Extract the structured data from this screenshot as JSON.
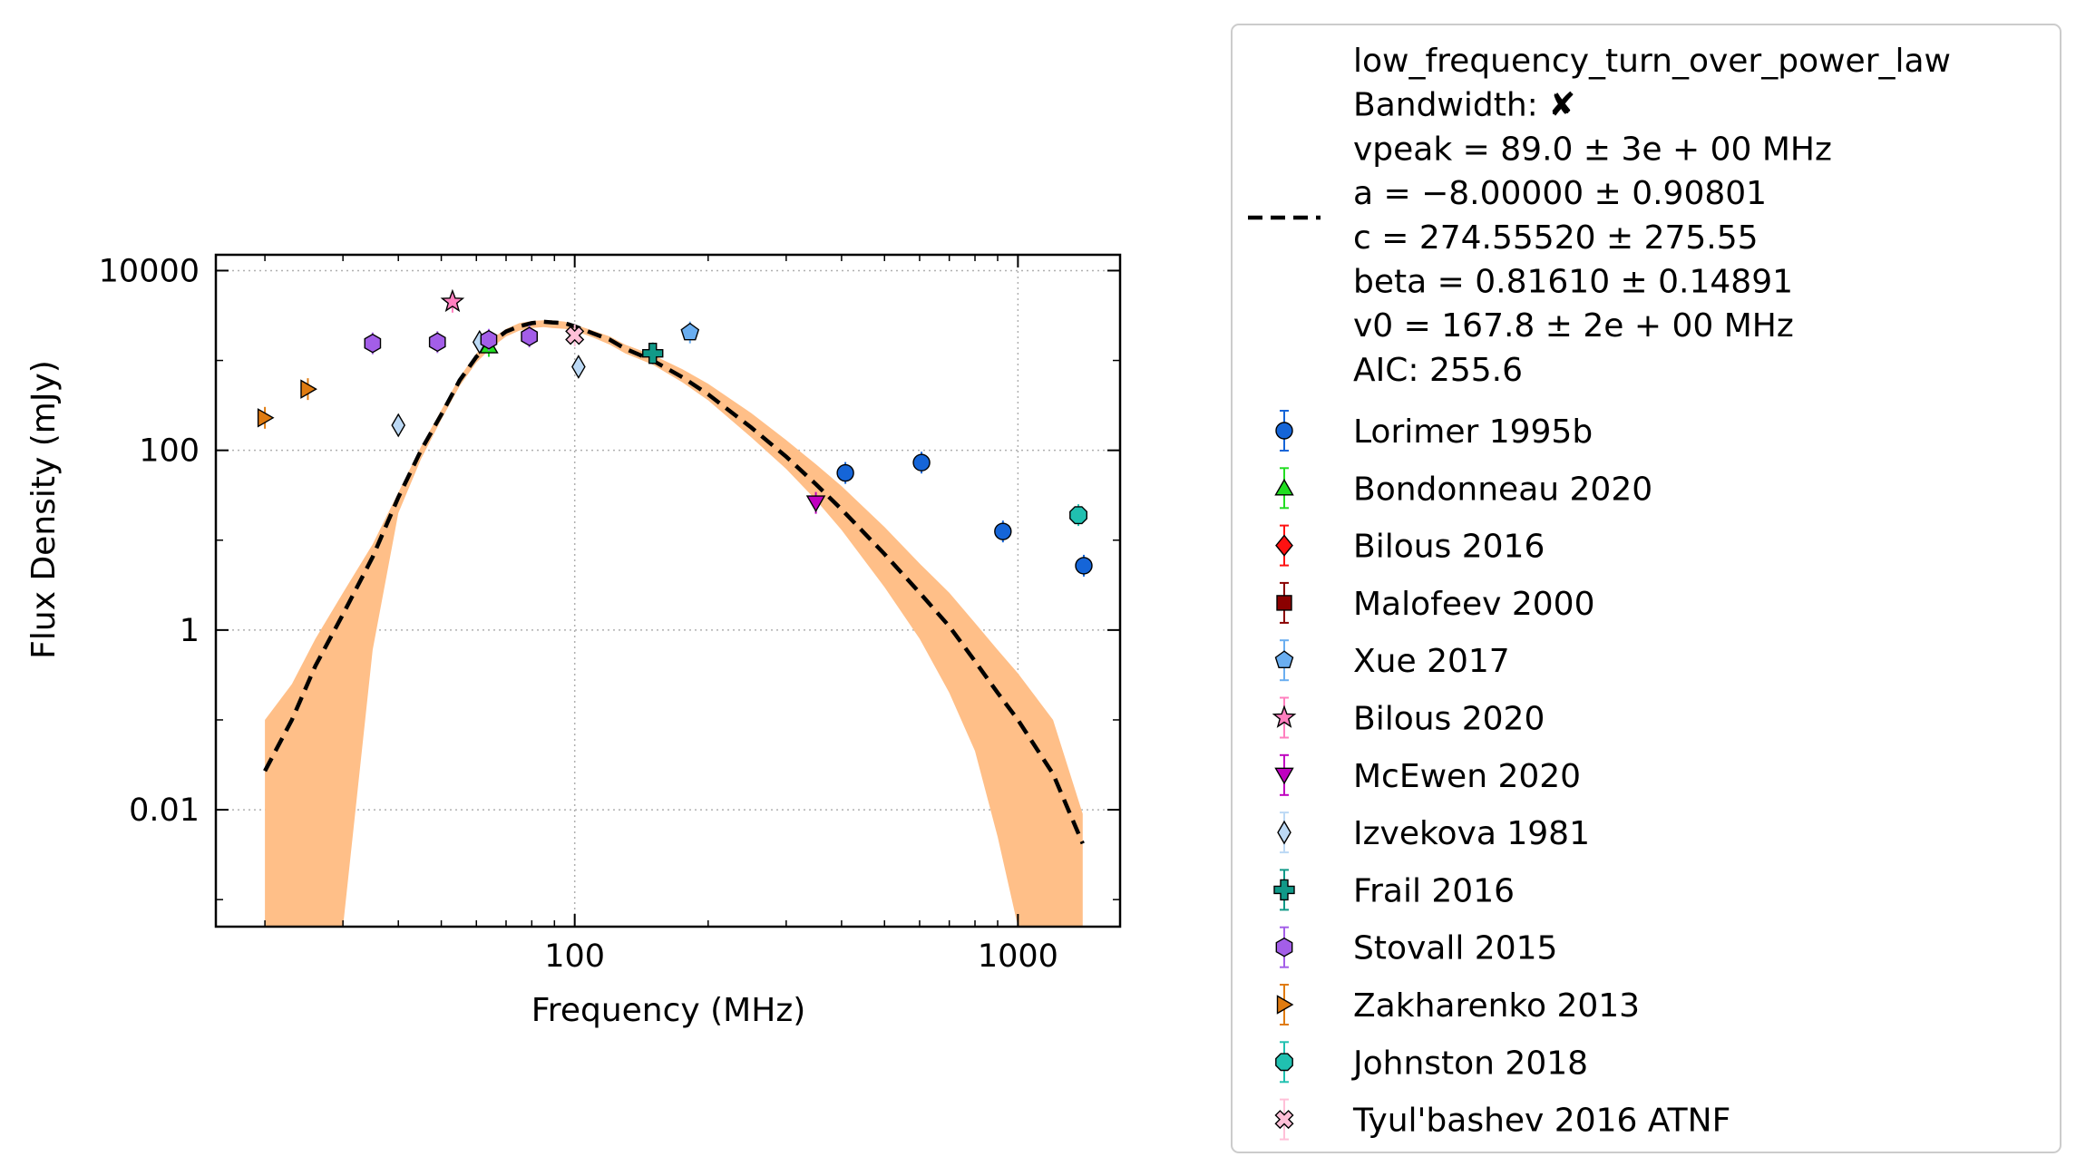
{
  "chart_data": {
    "type": "scatter",
    "xlabel": "Frequency (MHz)",
    "ylabel": "Flux Density (mJy)",
    "xscale": "log",
    "yscale": "log",
    "xlim": [
      15.5,
      1700
    ],
    "ylim": [
      0.0005,
      15000
    ],
    "x_ticks": [
      100,
      1000
    ],
    "x_tick_labels": [
      "100",
      "1000"
    ],
    "y_ticks": [
      0.01,
      1,
      100,
      10000
    ],
    "y_tick_labels": [
      "0.01",
      "1",
      "100",
      "10000"
    ],
    "grid": true,
    "legend_position": "outside-right",
    "fit": {
      "model_label": "low_frequency_turn_over_power_law",
      "info_lines": [
        "Bandwidth: ✘",
        "vpeak = 89.0 ± 3e + 00 MHz",
        "a = −8.00000 ± 0.90801",
        "c = 274.55520 ± 275.55",
        "beta = 0.81610 ± 0.14891",
        "v0 = 167.8 ± 2e + 00 MHz",
        "AIC: 255.6"
      ],
      "x": [
        20,
        23,
        26,
        30,
        35,
        40,
        45,
        50,
        55,
        60,
        65,
        70,
        75,
        80,
        85,
        89,
        95,
        100,
        110,
        120,
        130,
        150,
        175,
        200,
        250,
        300,
        350,
        400,
        500,
        600,
        700,
        800,
        900,
        1000,
        1200,
        1400
      ],
      "y": [
        0.027,
        0.1,
        0.4,
        1.5,
        6.5,
        30,
        100,
        250,
        600,
        1100,
        1600,
        2100,
        2400,
        2600,
        2700,
        2650,
        2600,
        2400,
        2000,
        1700,
        1350,
        1000,
        650,
        420,
        180,
        85,
        42,
        22,
        7,
        2.6,
        1.1,
        0.45,
        0.2,
        0.1,
        0.025,
        0.0042
      ],
      "band_upper": [
        0.1,
        0.25,
        0.8,
        2.6,
        9,
        34,
        110,
        280,
        650,
        1200,
        1750,
        2250,
        2600,
        2750,
        2800,
        2800,
        2700,
        2500,
        2150,
        1850,
        1500,
        1150,
        800,
        550,
        260,
        130,
        70,
        40,
        14,
        5.5,
        2.6,
        1.2,
        0.6,
        0.33,
        0.1,
        0.009
      ],
      "band_lower": [
        0.0005,
        0.0005,
        0.0005,
        0.0005,
        0.6,
        20,
        80,
        220,
        520,
        950,
        1400,
        1850,
        2150,
        2300,
        2350,
        2300,
        2250,
        2150,
        1800,
        1500,
        1200,
        900,
        570,
        360,
        140,
        62,
        28,
        13,
        3,
        0.8,
        0.2,
        0.045,
        0.005,
        0.0005,
        0.0005,
        0.0005
      ],
      "band_color": "#ffbf88",
      "line_color": "#000000"
    },
    "series": [
      {
        "name": "Lorimer 1995b",
        "marker": "circle",
        "color": "#1565d8",
        "x": [
          408,
          606,
          925,
          1408
        ],
        "y": [
          56,
          73,
          12.5,
          5.2
        ]
      },
      {
        "name": "Bondonneau 2020",
        "marker": "triangle-up",
        "color": "#22dd22",
        "x": [
          64
        ],
        "y": [
          1450
        ]
      },
      {
        "name": "Bilous 2016",
        "marker": "diamond",
        "color": "#ff1111",
        "x": [],
        "y": []
      },
      {
        "name": "Malofeev 2000",
        "marker": "square",
        "color": "#8b0000",
        "x": [],
        "y": []
      },
      {
        "name": "Xue 2017",
        "marker": "pentagon",
        "color": "#6aaef0",
        "x": [
          182
        ],
        "y": [
          2050
        ]
      },
      {
        "name": "Bilous 2020",
        "marker": "star",
        "color": "#ff7fbf",
        "x": [
          53
        ],
        "y": [
          4500
        ]
      },
      {
        "name": "McEwen 2020",
        "marker": "triangle-down",
        "color": "#c000c0",
        "x": [
          350
        ],
        "y": [
          26
        ]
      },
      {
        "name": "Izvekova 1981",
        "marker": "thin-diamond",
        "color": "#bcd9f5",
        "x": [
          40,
          61,
          102
        ],
        "y": [
          190,
          1600,
          850
        ]
      },
      {
        "name": "Frail 2016",
        "marker": "plus",
        "color": "#119988",
        "x": [
          150
        ],
        "y": [
          1200
        ]
      },
      {
        "name": "Stovall 2015",
        "marker": "hexagon",
        "color": "#a35ee8",
        "x": [
          35,
          49,
          64,
          79
        ],
        "y": [
          1550,
          1600,
          1700,
          1850
        ]
      },
      {
        "name": "Zakharenko 2013",
        "marker": "triangle-right",
        "color": "#e07b10",
        "x": [
          20,
          25
        ],
        "y": [
          230,
          480
        ]
      },
      {
        "name": "Johnston 2018",
        "marker": "octagon",
        "color": "#20c0b0",
        "x": [
          1369
        ],
        "y": [
          19
        ]
      },
      {
        "name": "Tyul'bashev 2016 ATNF",
        "marker": "x-filled",
        "color": "#ffc0d8",
        "x": [
          100
        ],
        "y": [
          1900
        ]
      }
    ]
  }
}
